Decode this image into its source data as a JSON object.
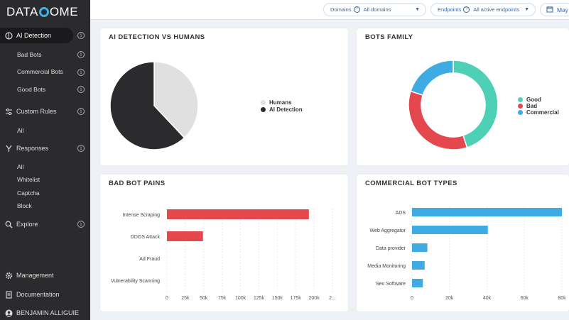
{
  "brand": {
    "logo_left": "DATA",
    "logo_right": "OME"
  },
  "sidebar": {
    "ai_detection": "AI Detection",
    "bad_bots": "Bad Bots",
    "commercial_bots": "Commercial Bots",
    "good_bots": "Good Bots",
    "custom_rules": "Custom Rules",
    "custom_rules_all": "All",
    "responses": "Responses",
    "responses_all": "All",
    "whitelist": "Whitelist",
    "captcha": "Captcha",
    "block": "Block",
    "explore": "Explore",
    "management": "Management",
    "documentation": "Documentation",
    "user": "BENJAMIN ALLIGUIE"
  },
  "topbar": {
    "domains_label": "Domains",
    "domains_value": "All domains",
    "endpoints_label": "Endpoints",
    "endpoints_value": "All active endpoints",
    "date_value": "May"
  },
  "cards": {
    "ai_vs_humans": "AI DETECTION VS HUMANS",
    "bots_family": "BOTS FAMILY",
    "bad_bot_pains": "BAD BOT PAINS",
    "commercial_bot_types": "COMMERCIAL BOT TYPES"
  },
  "colors": {
    "good": "#4dd0b5",
    "bad": "#e4484d",
    "commercial": "#3eace3",
    "humans": "#e0e0e0",
    "ai": "#2b2b2e"
  },
  "chart_data": [
    {
      "type": "pie",
      "title": "AI DETECTION VS HUMANS",
      "categories": [
        "Humans",
        "AI Detection"
      ],
      "values": [
        38,
        62
      ],
      "colors": [
        "#e0e0e0",
        "#2b2b2e"
      ],
      "legend": "right"
    },
    {
      "type": "pie",
      "title": "BOTS FAMILY",
      "donut": true,
      "categories": [
        "Good",
        "Bad",
        "Commercial"
      ],
      "values": [
        45,
        35,
        20
      ],
      "colors": [
        "#4dd0b5",
        "#e4484d",
        "#3eace3"
      ],
      "legend": "right"
    },
    {
      "type": "bar",
      "orientation": "horizontal",
      "title": "BAD BOT PAINS",
      "categories": [
        "Intense Scraping",
        "DDOS Attack",
        "Ad Fraud",
        "Vulnerability Scanning"
      ],
      "values": [
        193000,
        49000,
        0,
        0
      ],
      "color": "#e4484d",
      "xlim": [
        0,
        225000
      ],
      "ticks": [
        "0",
        "25k",
        "50k",
        "75k",
        "100k",
        "125k",
        "150k",
        "175k",
        "200k",
        "2..."
      ],
      "grid": true
    },
    {
      "type": "bar",
      "orientation": "horizontal",
      "title": "COMMERCIAL BOT TYPES",
      "categories": [
        "ADS",
        "Web Aggregator",
        "Data provider",
        "Media Monitoring",
        "Seo Software"
      ],
      "values": [
        83000,
        42000,
        8500,
        7000,
        6000
      ],
      "color": "#3eace3",
      "xlim": [
        0,
        83000
      ],
      "ticks": [
        "0",
        "20k",
        "40k",
        "60k",
        "80k"
      ],
      "grid": true
    }
  ]
}
